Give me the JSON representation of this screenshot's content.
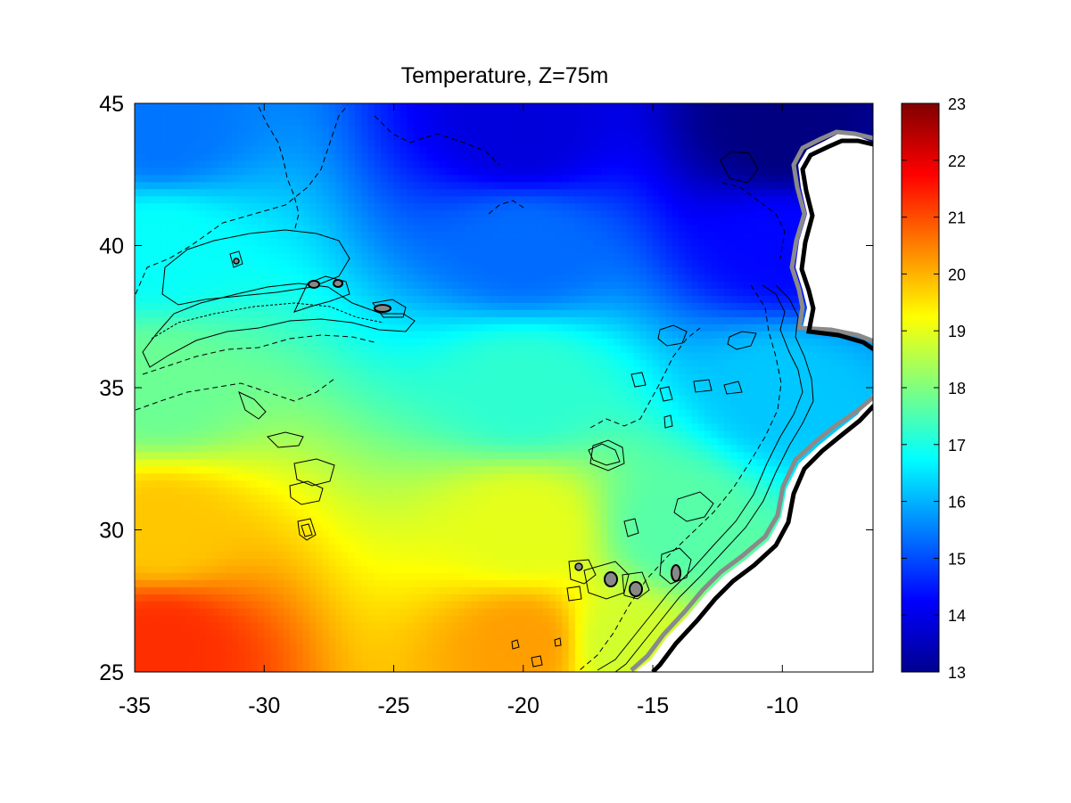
{
  "chart_data": {
    "type": "heatmap",
    "title": "Temperature, Z=75m",
    "xlabel": "",
    "ylabel": "",
    "xlim": [
      -35,
      -6.5
    ],
    "ylim": [
      25,
      45
    ],
    "x_ticks": [
      -35,
      -30,
      -25,
      -20,
      -15,
      -10
    ],
    "y_ticks": [
      25,
      30,
      35,
      40,
      45
    ],
    "colorbar": {
      "range": [
        13,
        23
      ],
      "ticks": [
        13,
        14,
        15,
        16,
        17,
        18,
        19,
        20,
        21,
        22,
        23
      ],
      "colormap": "jet"
    },
    "field_description_points": [
      {
        "lon": -34,
        "lat": 44,
        "value": 15.4
      },
      {
        "lon": -20,
        "lat": 44,
        "value": 13.9
      },
      {
        "lon": -10,
        "lat": 44,
        "value": 13.0
      },
      {
        "lon": -34,
        "lat": 40,
        "value": 16.8
      },
      {
        "lon": -20,
        "lat": 40,
        "value": 15.3
      },
      {
        "lon": -10,
        "lat": 40,
        "value": 14.3
      },
      {
        "lon": -34,
        "lat": 35,
        "value": 17.8
      },
      {
        "lon": -20,
        "lat": 35,
        "value": 17.2
      },
      {
        "lon": -10,
        "lat": 35,
        "value": 16.2
      },
      {
        "lon": -34,
        "lat": 30,
        "value": 19.8
      },
      {
        "lon": -20,
        "lat": 30,
        "value": 19.0
      },
      {
        "lon": -14,
        "lat": 30,
        "value": 17.6
      },
      {
        "lon": -34,
        "lat": 26,
        "value": 21.3
      },
      {
        "lon": -20,
        "lat": 26,
        "value": 20.2
      },
      {
        "lon": -16,
        "lat": 26,
        "value": 18.8
      }
    ],
    "land_color": "#ffffff",
    "coastline_colors": [
      "#000000",
      "#888888"
    ],
    "contour_color": "#000000"
  }
}
